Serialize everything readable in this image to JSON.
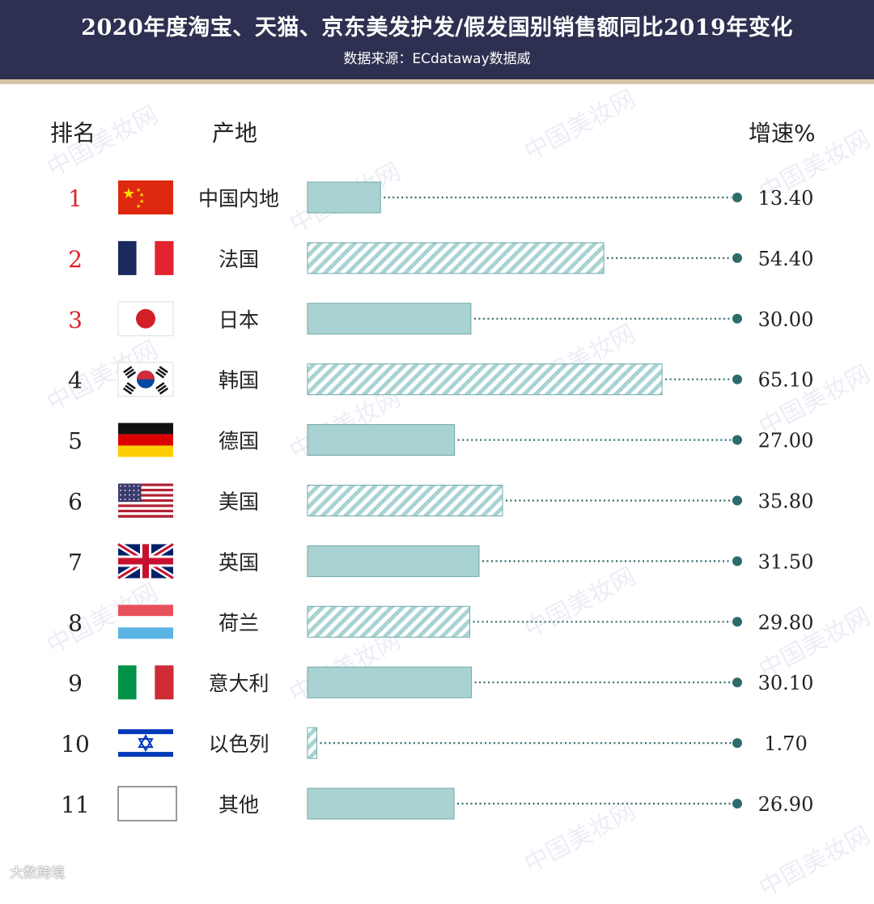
{
  "header": {
    "title": "2020年度淘宝、天猫、京东美发护发/假发国别销售额同比2019年变化",
    "source": "数据来源：ECdataway数据威"
  },
  "columns": {
    "rank": "排名",
    "origin": "产地",
    "growth": "增速%"
  },
  "watermark": "中国美妆网",
  "footer_logo": "大数跨境",
  "colors": {
    "header_bg": "#2d3050",
    "bar_fill": "#a9d3d3",
    "bar_stroke": "#6fa7a7",
    "dot": "#2e6b6b",
    "rank_highlight": "#d9262c"
  },
  "chart_data": {
    "type": "bar",
    "orientation": "horizontal",
    "categories": [
      "中国内地",
      "法国",
      "日本",
      "韩国",
      "德国",
      "美国",
      "英国",
      "荷兰",
      "意大利",
      "以色列",
      "其他"
    ],
    "ranks": [
      "1",
      "2",
      "3",
      "4",
      "5",
      "6",
      "7",
      "8",
      "9",
      "10",
      "11"
    ],
    "values": [
      13.4,
      54.4,
      30.0,
      65.1,
      27.0,
      35.8,
      31.5,
      29.8,
      30.1,
      1.7,
      26.9
    ],
    "value_labels": [
      "13.40",
      "54.40",
      "30.00",
      "65.10",
      "27.00",
      "35.80",
      "31.50",
      "29.80",
      "30.10",
      "1.70",
      "26.90"
    ],
    "flags": [
      "china-flag-icon",
      "france-flag-icon",
      "japan-flag-icon",
      "korea-flag-icon",
      "germany-flag-icon",
      "usa-flag-icon",
      "uk-flag-icon",
      "netherlands-flag-icon",
      "italy-flag-icon",
      "israel-flag-icon",
      "blank-flag-icon"
    ],
    "hatched": [
      false,
      true,
      false,
      true,
      false,
      true,
      false,
      true,
      false,
      true,
      false
    ],
    "highlighted_ranks": [
      1,
      2,
      3
    ],
    "grid": false
  }
}
